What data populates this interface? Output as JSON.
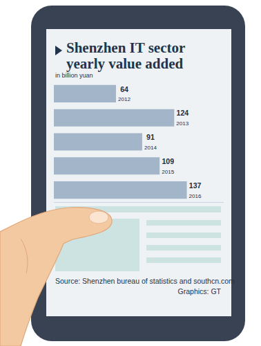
{
  "chart_data": {
    "type": "bar",
    "title": "Shenzhen IT sector yearly value added",
    "subtitle": "in billion yuan",
    "categories": [
      "2012",
      "2013",
      "2014",
      "2015",
      "2016"
    ],
    "values": [
      64,
      124,
      91,
      109,
      137
    ],
    "color": "#a3b5c9",
    "orientation": "horizontal",
    "data_labels": true,
    "tick_labels": false,
    "grid": false,
    "xlim": [
      0,
      175
    ],
    "xticks": [],
    "source": "Source: Shenzhen bureau of statistics and southcn.com",
    "credit": "Graphics: GT"
  }
}
